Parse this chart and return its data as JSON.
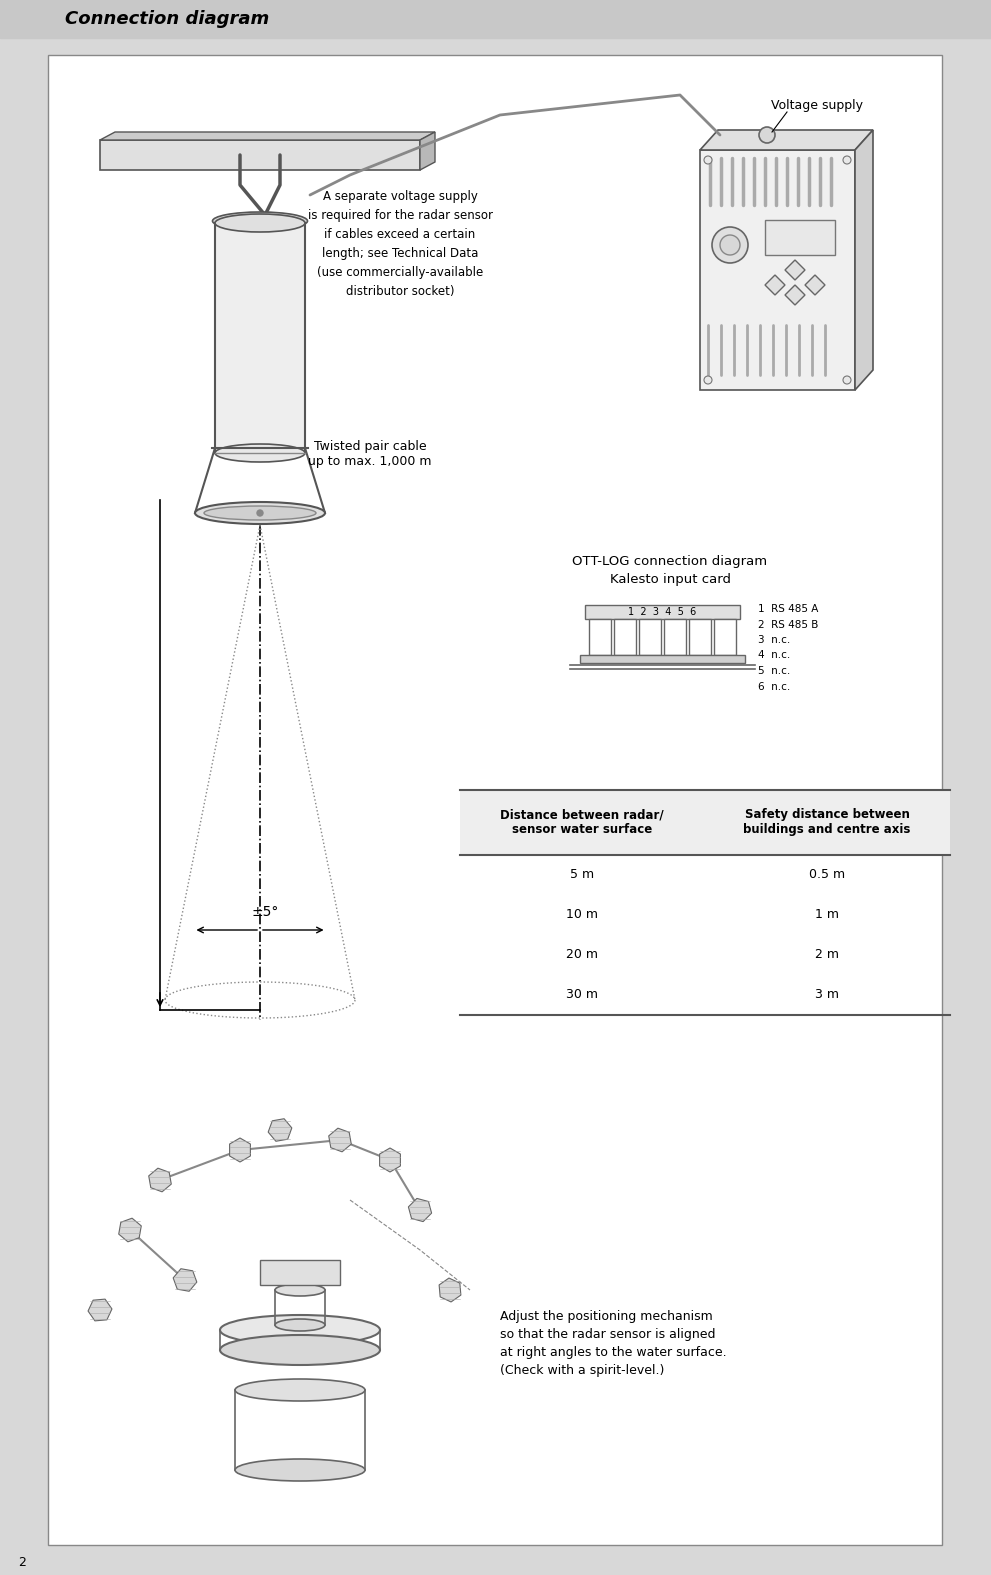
{
  "page_bg": "#d8d8d8",
  "content_bg": "#ffffff",
  "header_text": "Connection diagram",
  "header_bg": "#c8c8c8",
  "header_fontsize": 13,
  "page_number": "2",
  "twisted_pair_text": "Twisted pair cable\nup to max. 1,000 m",
  "voltage_supply_text": "Voltage supply",
  "annotation_text": "A separate voltage supply\nis required for the radar sensor\nif cables exceed a certain\nlength; see Technical Data\n(use commercially-available\ndistributor socket)",
  "ott_log_title": "OTT-LOG connection diagram\nKalesto input card",
  "pin_labels": [
    "1  RS 485 A",
    "2  RS 485 B",
    "3  n.c.",
    "4  n.c.",
    "5  n.c.",
    "6  n.c."
  ],
  "table_header_col1": "Distance between radar/\nsensor water surface",
  "table_header_col2": "Safety distance between\nbuildings and centre axis",
  "table_rows": [
    [
      "5 m",
      "0.5 m"
    ],
    [
      "10 m",
      "1 m"
    ],
    [
      "20 m",
      "2 m"
    ],
    [
      "30 m",
      "3 m"
    ]
  ],
  "angle_label": "±5°",
  "adjust_text": "Adjust the positioning mechanism\nso that the radar sensor is aligned\nat right angles to the water surface.\n(Check with a spirit-level.)"
}
